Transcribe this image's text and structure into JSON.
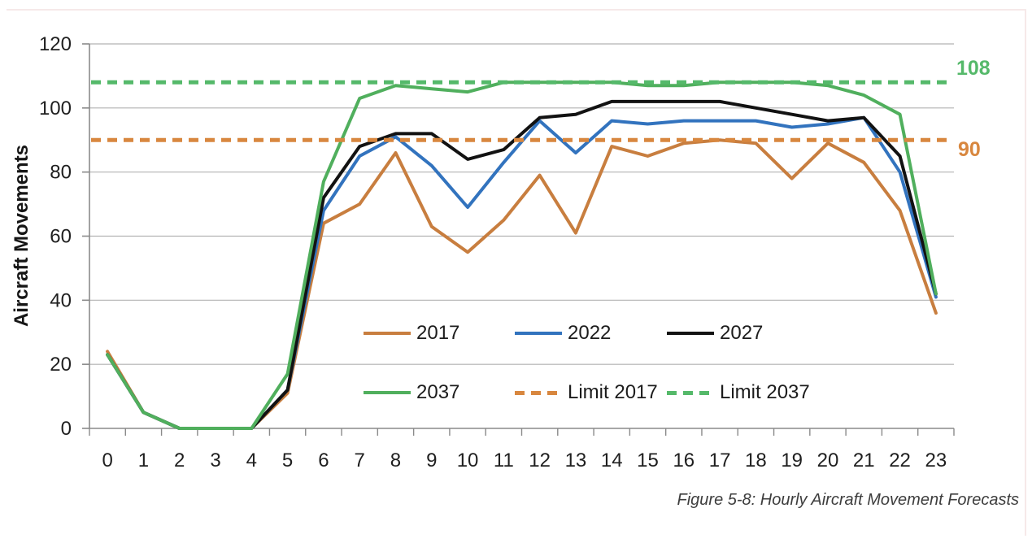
{
  "figure": {
    "caption": "Figure 5-8: Hourly Aircraft Movement Forecasts"
  },
  "chart_data": {
    "type": "line",
    "title": "",
    "xlabel": "",
    "ylabel": "Aircraft Movements",
    "ylim": [
      0,
      120
    ],
    "y_ticks": [
      0,
      20,
      40,
      60,
      80,
      100,
      120
    ],
    "x": [
      0,
      1,
      2,
      3,
      4,
      5,
      6,
      7,
      8,
      9,
      10,
      11,
      12,
      13,
      14,
      15,
      16,
      17,
      18,
      19,
      20,
      21,
      22,
      23
    ],
    "grid": true,
    "legend_position": "inside-bottom-center",
    "series": [
      {
        "name": "2017",
        "color": "#C87E3F",
        "values": [
          24,
          5,
          0,
          0,
          0,
          11,
          64,
          70,
          86,
          63,
          55,
          65,
          79,
          61,
          88,
          85,
          89,
          90,
          89,
          78,
          89,
          83,
          68,
          36
        ]
      },
      {
        "name": "2022",
        "color": "#3273BE",
        "values": [
          23,
          5,
          0,
          0,
          0,
          12,
          68,
          85,
          91,
          82,
          69,
          83,
          96,
          86,
          96,
          95,
          96,
          96,
          96,
          94,
          95,
          97,
          80,
          41
        ]
      },
      {
        "name": "2027",
        "color": "#121212",
        "values": [
          23,
          5,
          0,
          0,
          0,
          12,
          72,
          88,
          92,
          92,
          84,
          87,
          97,
          98,
          102,
          102,
          102,
          102,
          100,
          98,
          96,
          97,
          85,
          42
        ]
      },
      {
        "name": "2037",
        "color": "#50AF5D",
        "values": [
          23,
          5,
          0,
          0,
          0,
          17,
          77,
          103,
          107,
          106,
          105,
          108,
          108,
          108,
          108,
          107,
          107,
          108,
          108,
          108,
          107,
          104,
          98,
          42
        ]
      }
    ],
    "limits": [
      {
        "name": "Limit 2017",
        "value": 90,
        "color": "#D8873F",
        "label": "90"
      },
      {
        "name": "Limit 2037",
        "value": 108,
        "color": "#55B96A",
        "label": "108"
      }
    ],
    "legend_rows": [
      [
        "2017",
        "2022",
        "2027"
      ],
      [
        "2037",
        "Limit 2017",
        "Limit 2037"
      ]
    ]
  }
}
